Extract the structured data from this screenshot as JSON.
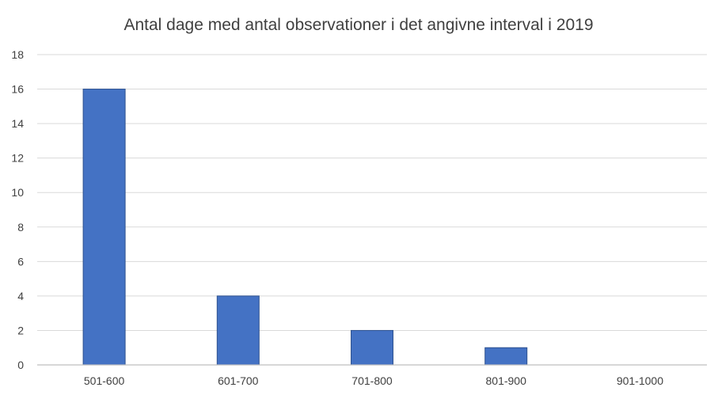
{
  "chart_data": {
    "type": "bar",
    "title": "Antal dage med antal observationer i det angivne interval i 2019",
    "xlabel": "",
    "ylabel": "",
    "categories": [
      "501-600",
      "601-700",
      "701-800",
      "801-900",
      "901-1000"
    ],
    "values": [
      16,
      4,
      2,
      1,
      0
    ],
    "ylim": [
      0,
      18
    ],
    "yticks": [
      0,
      2,
      4,
      6,
      8,
      10,
      12,
      14,
      16,
      18
    ],
    "grid": true,
    "legend": "none",
    "bar_color": "#4472c4"
  }
}
